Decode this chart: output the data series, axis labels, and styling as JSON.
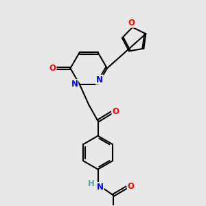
{
  "bg_color": "#e8e8e8",
  "bond_color": "#000000",
  "bond_width": 1.5,
  "atom_colors": {
    "O": "#ff0000",
    "N": "#0000ff",
    "H": "#5f9ea0",
    "C": "#000000"
  },
  "font_size": 8.5,
  "fig_size": [
    3.0,
    3.0
  ],
  "dpi": 100
}
